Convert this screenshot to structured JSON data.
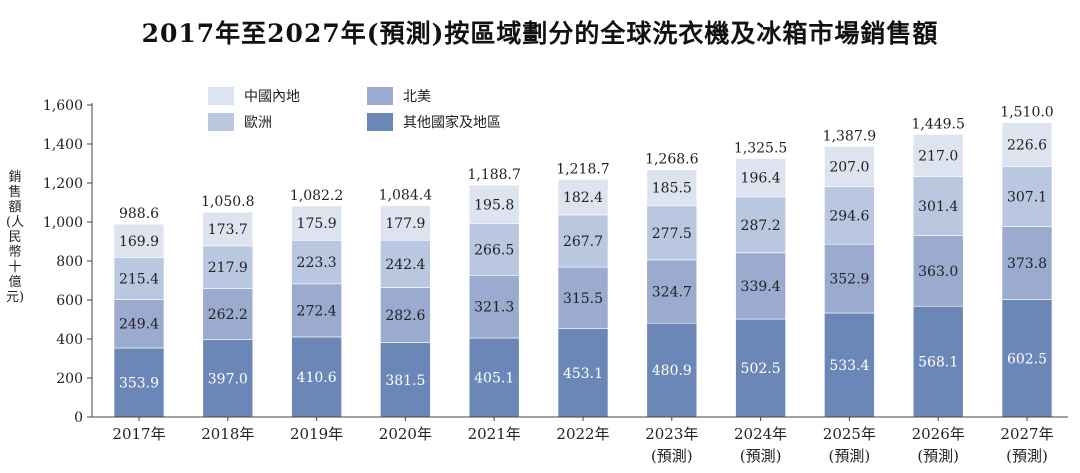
{
  "chart_data": {
    "type": "bar",
    "stacked": true,
    "title": "2017年至2027年(預測)按區域劃分的全球洗衣機及冰箱市場銷售額",
    "ylabel": "銷售額(人民幣十億元)",
    "xlabel": "",
    "ylim": [
      0,
      1600
    ],
    "yticks": [
      "0",
      "200",
      "400",
      "600",
      "800",
      "1,000",
      "1,200",
      "1,400",
      "1,600"
    ],
    "grid": false,
    "legend_position": "top-left",
    "categories": [
      "2017年",
      "2018年",
      "2019年",
      "2020年",
      "2021年",
      "2022年",
      "2023年",
      "2024年",
      "2025年",
      "2026年",
      "2027年"
    ],
    "category_notes": [
      "",
      "",
      "",
      "",
      "",
      "",
      "(預測)",
      "(預測)",
      "(預測)",
      "(預測)",
      "(預測)"
    ],
    "totals": [
      "988.6",
      "1,050.8",
      "1,082.2",
      "1,084.4",
      "1,188.7",
      "1,218.7",
      "1,268.6",
      "1,325.5",
      "1,387.9",
      "1,449.5",
      "1,510.0"
    ],
    "series": [
      {
        "name": "其他國家及地區",
        "color": "#6b87b8",
        "label_color": "#ffffff",
        "values": [
          353.9,
          397.0,
          410.6,
          381.5,
          405.1,
          453.1,
          480.9,
          502.5,
          533.4,
          568.1,
          602.5
        ]
      },
      {
        "name": "北美",
        "color": "#9aabcf",
        "label_color": "#222222",
        "values": [
          249.4,
          262.2,
          272.4,
          282.6,
          321.3,
          315.5,
          324.7,
          339.4,
          352.9,
          363.0,
          373.8
        ]
      },
      {
        "name": "歐洲",
        "color": "#bac7e0",
        "label_color": "#222222",
        "values": [
          215.4,
          217.9,
          223.3,
          242.4,
          266.5,
          267.7,
          277.5,
          287.2,
          294.6,
          301.4,
          307.1
        ]
      },
      {
        "name": "中國內地",
        "color": "#dde4f0",
        "label_color": "#222222",
        "values": [
          169.9,
          173.7,
          175.9,
          177.9,
          195.8,
          182.4,
          185.5,
          196.4,
          207.0,
          217.0,
          226.6
        ]
      }
    ]
  }
}
